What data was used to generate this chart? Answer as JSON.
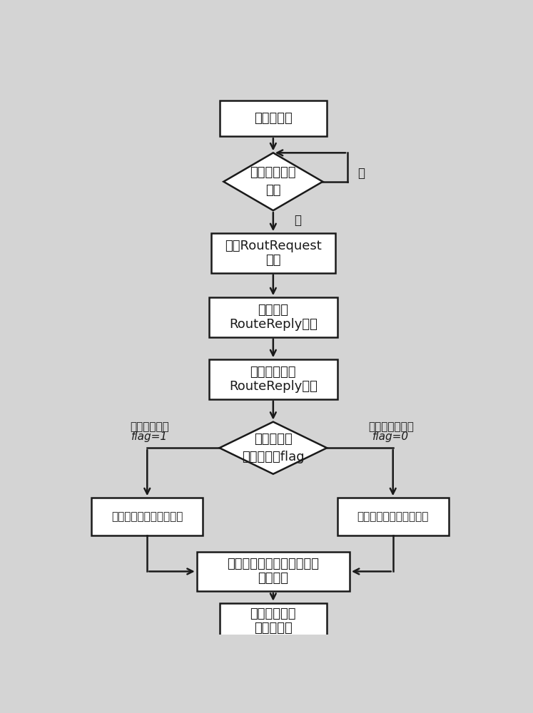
{
  "bg_color": "#d4d4d4",
  "box_color": "#ffffff",
  "box_edge_color": "#1a1a1a",
  "arrow_color": "#1a1a1a",
  "text_color": "#1a1a1a",
  "font_size": 13,
  "small_font_size": 11,
  "label_font_size": 12,
  "init_text": "网络初始化",
  "d1_text_line1": "是否有分组要",
  "d1_text_line2": "发送",
  "bc_text_line1": "广播RoutRequest",
  "bc_text_line2": "消息",
  "wait_text_line1": "等待接收",
  "wait_text_line2": "RouteReply消息",
  "proc_text_line1": "处理接收到的",
  "proc_text_line2": "RouteReply消息",
  "d2_text_line1": "判断要发送",
  "d2_text_line2": "的分组类型flag",
  "dl_text": "计算邻居节点的时延权值",
  "bl_text": "计算邻居节点的平衡权值",
  "sel_text_line1": "选择权值最小的节点作为下",
  "sel_text_line2": "一跳节点",
  "send_text_line1": "向目标节点发",
  "send_text_line2": "送分组数据",
  "no_label": "否",
  "yes_label": "是",
  "left_label1": "时延敏感分组",
  "left_label2": "flag=1",
  "right_label1": "非时延敏感分组",
  "right_label2": "flag=0"
}
